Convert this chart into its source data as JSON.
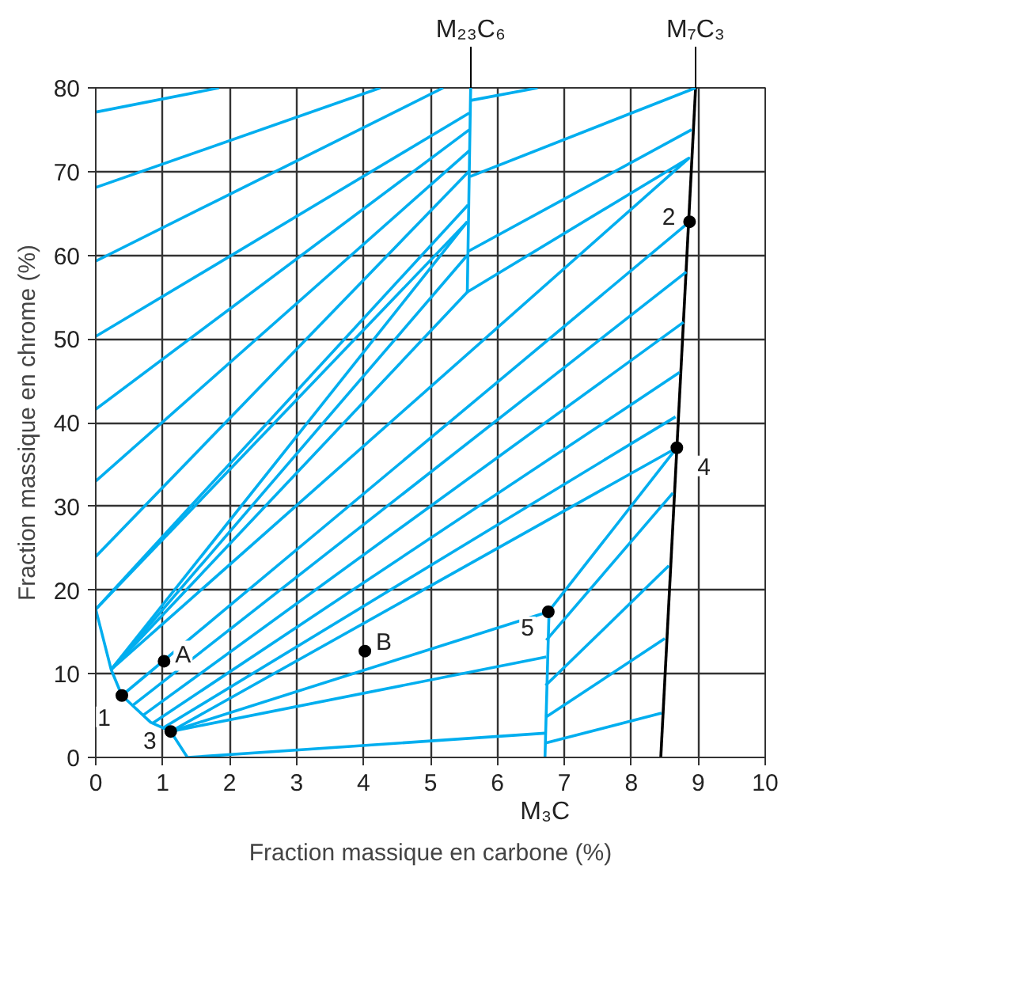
{
  "chart_data": {
    "type": "line",
    "xlabel": "Fraction massique en carbone (%)",
    "ylabel": "Fraction massique en chrome (%)",
    "xlim": [
      0,
      10
    ],
    "ylim": [
      0,
      80
    ],
    "xticks": [
      0,
      1,
      2,
      3,
      4,
      5,
      6,
      7,
      8,
      9,
      10
    ],
    "yticks": [
      0,
      10,
      20,
      30,
      40,
      50,
      60,
      70,
      80
    ],
    "grid": true,
    "marker": "none",
    "line_style": "solid",
    "series": [
      {
        "color": "#000000",
        "x": [
          8.44,
          8.96
        ],
        "values": [
          0,
          80
        ]
      },
      {
        "color": "#00aeef",
        "x": [
          6.71,
          6.77
        ],
        "values": [
          0,
          17.2
        ]
      },
      {
        "color": "#00aeef",
        "x": [
          0,
          0.23,
          0.39,
          0.82,
          1.12,
          1.37
        ],
        "values": [
          17.7,
          10.5,
          7.4,
          4.2,
          3.1,
          0
        ]
      },
      {
        "color": "#00aeef",
        "x": [
          0,
          1.84
        ],
        "values": [
          77.1,
          80
        ]
      },
      {
        "color": "#00aeef",
        "x": [
          0,
          4.25
        ],
        "values": [
          68.1,
          80
        ]
      },
      {
        "color": "#00aeef",
        "x": [
          0,
          5.19
        ],
        "values": [
          59.3,
          80
        ]
      },
      {
        "color": "#00aeef",
        "x": [
          0,
          5.58
        ],
        "values": [
          50.3,
          77
        ]
      },
      {
        "color": "#00aeef",
        "x": [
          0,
          5.58
        ],
        "values": [
          41.6,
          75
        ]
      },
      {
        "color": "#00aeef",
        "x": [
          0,
          5.58
        ],
        "values": [
          33,
          72.5
        ]
      },
      {
        "color": "#00aeef",
        "x": [
          0,
          5.57
        ],
        "values": [
          24,
          70
        ]
      },
      {
        "color": "#00aeef",
        "x": [
          0,
          5.56
        ],
        "values": [
          17.7,
          66
        ]
      },
      {
        "color": "#00aeef",
        "x": [
          0,
          5.55
        ],
        "values": [
          17.7,
          64
        ]
      },
      {
        "color": "#00aeef",
        "x": [
          0.23,
          5.55
        ],
        "values": [
          10.5,
          64
        ]
      },
      {
        "color": "#00aeef",
        "x": [
          0.23,
          5.55
        ],
        "values": [
          10.5,
          60
        ]
      },
      {
        "color": "#00aeef",
        "x": [
          0.23,
          5.55
        ],
        "values": [
          10.5,
          55.6
        ]
      },
      {
        "color": "#00aeef",
        "x": [
          5.6,
          6.6
        ],
        "values": [
          78.5,
          80
        ]
      },
      {
        "color": "#00aeef",
        "x": [
          5.59,
          8.96
        ],
        "values": [
          69.4,
          80
        ]
      },
      {
        "color": "#00aeef",
        "x": [
          5.57,
          8.9
        ],
        "values": [
          60.5,
          75
        ]
      },
      {
        "color": "#00aeef",
        "x": [
          5.6,
          5.55,
          8.86,
          0.23
        ],
        "values": [
          80,
          55.6,
          71.6,
          10.5
        ]
      },
      {
        "color": "#00aeef",
        "x": [
          0.39,
          8.87
        ],
        "values": [
          7.4,
          64
        ]
      },
      {
        "color": "#00aeef",
        "x": [
          0.55,
          8.82
        ],
        "values": [
          6.2,
          58
        ]
      },
      {
        "color": "#00aeef",
        "x": [
          0.7,
          8.78
        ],
        "values": [
          5,
          52
        ]
      },
      {
        "color": "#00aeef",
        "x": [
          0.85,
          8.72
        ],
        "values": [
          4.1,
          46
        ]
      },
      {
        "color": "#00aeef",
        "x": [
          1.0,
          8.66
        ],
        "values": [
          3.5,
          40.7
        ]
      },
      {
        "color": "#00aeef",
        "x": [
          1.12,
          8.68
        ],
        "values": [
          3.1,
          37
        ]
      },
      {
        "color": "#00aeef",
        "x": [
          1.12,
          6.76
        ],
        "values": [
          3.1,
          17.4
        ]
      },
      {
        "color": "#00aeef",
        "x": [
          6.76,
          8.68
        ],
        "values": [
          17.4,
          37
        ]
      },
      {
        "color": "#00aeef",
        "x": [
          1.12,
          6.73
        ],
        "values": [
          3.1,
          12
        ]
      },
      {
        "color": "#00aeef",
        "x": [
          1.37,
          6.71
        ],
        "values": [
          0,
          2.9
        ]
      },
      {
        "color": "#00aeef",
        "x": [
          6.73,
          8.62
        ],
        "values": [
          14,
          31.6
        ]
      },
      {
        "color": "#00aeef",
        "x": [
          6.72,
          8.56
        ],
        "values": [
          8.6,
          22.9
        ]
      },
      {
        "color": "#00aeef",
        "x": [
          6.72,
          8.5
        ],
        "values": [
          4.8,
          14.2
        ]
      },
      {
        "color": "#00aeef",
        "x": [
          6.71,
          8.45
        ],
        "values": [
          1.7,
          5.3
        ]
      },
      {
        "type": "scatter",
        "marker": "circle",
        "color": "#000000",
        "x": [
          0.39,
          8.87,
          1.12,
          8.68,
          6.76,
          1.02,
          4.02
        ],
        "values": [
          7.4,
          64,
          3.1,
          37,
          17.4,
          11.5,
          12.7
        ]
      }
    ],
    "annotations": [
      {
        "text": "1",
        "x": 0.39,
        "y": 7.4
      },
      {
        "text": "2",
        "x": 8.87,
        "y": 64
      },
      {
        "text": "3",
        "x": 1.12,
        "y": 3.1
      },
      {
        "text": "4",
        "x": 8.68,
        "y": 37
      },
      {
        "text": "5",
        "x": 6.76,
        "y": 17.4
      },
      {
        "text": "A",
        "x": 1.02,
        "y": 11.5
      },
      {
        "text": "B",
        "x": 4.02,
        "y": 12.7
      },
      {
        "text": "M₂₃C₆",
        "x": 5.6,
        "y": 80
      },
      {
        "text": "M₇C₃",
        "x": 8.96,
        "y": 80
      },
      {
        "text": "M₃C",
        "x": 6.71,
        "y": 0
      }
    ]
  }
}
